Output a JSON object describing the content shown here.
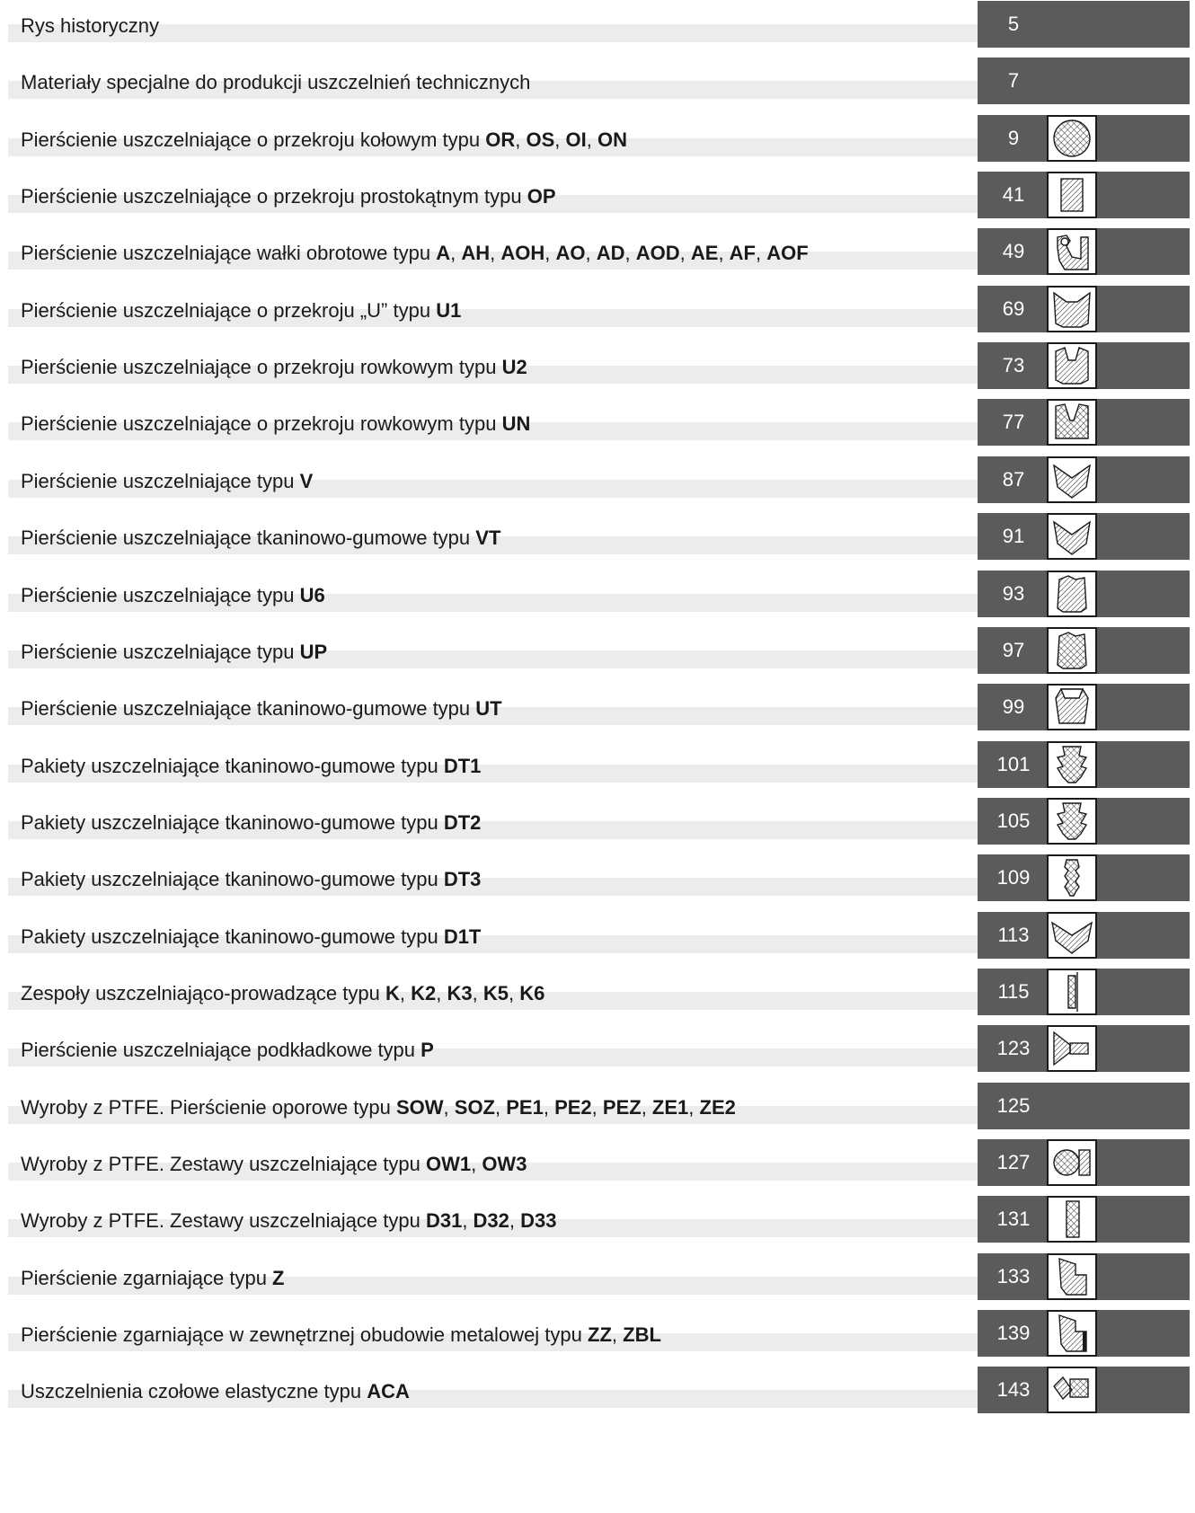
{
  "toc": {
    "entries": [
      {
        "title_parts": [
          {
            "text": "Rys historyczny",
            "bold": false
          }
        ],
        "page": "5",
        "icon": "none"
      },
      {
        "title_parts": [
          {
            "text": "Materiały specjalne do produkcji uszczelnień technicznych",
            "bold": false
          }
        ],
        "page": "7",
        "icon": "none"
      },
      {
        "title_parts": [
          {
            "text": "Pierścienie uszczelniające o przekroju kołowym typu ",
            "bold": false
          },
          {
            "text": "OR",
            "bold": true
          },
          {
            "text": ", ",
            "bold": false
          },
          {
            "text": "OS",
            "bold": true
          },
          {
            "text": ", ",
            "bold": false
          },
          {
            "text": "OI",
            "bold": true
          },
          {
            "text": ", ",
            "bold": false
          },
          {
            "text": "ON",
            "bold": true
          }
        ],
        "page": "9",
        "icon": "circle-section-icon"
      },
      {
        "title_parts": [
          {
            "text": "Pierścienie uszczelniające o przekroju prostokątnym typu ",
            "bold": false
          },
          {
            "text": "OP",
            "bold": true
          }
        ],
        "page": "41",
        "icon": "rectangle-section-icon"
      },
      {
        "title_parts": [
          {
            "text": "Pierścienie uszczelniające wałki obrotowe typu ",
            "bold": false
          },
          {
            "text": "A",
            "bold": true
          },
          {
            "text": ", ",
            "bold": false
          },
          {
            "text": "AH",
            "bold": true
          },
          {
            "text": ", ",
            "bold": false
          },
          {
            "text": "AOH",
            "bold": true
          },
          {
            "text": ", ",
            "bold": false
          },
          {
            "text": "AO",
            "bold": true
          },
          {
            "text": ", ",
            "bold": false
          },
          {
            "text": "AD",
            "bold": true
          },
          {
            "text": ", ",
            "bold": false
          },
          {
            "text": "AOD",
            "bold": true
          },
          {
            "text": ", ",
            "bold": false
          },
          {
            "text": "AE",
            "bold": true
          },
          {
            "text": ", ",
            "bold": false
          },
          {
            "text": "AF",
            "bold": true
          },
          {
            "text": ", ",
            "bold": false
          },
          {
            "text": "AOF",
            "bold": true
          }
        ],
        "page": "49",
        "icon": "shaft-seal-icon"
      },
      {
        "title_parts": [
          {
            "text": "Pierścienie uszczelniające o przekroju „U” typu ",
            "bold": false
          },
          {
            "text": "U1",
            "bold": true
          }
        ],
        "page": "69",
        "icon": "u-section-icon"
      },
      {
        "title_parts": [
          {
            "text": "Pierścienie uszczelniające o przekroju rowkowym typu ",
            "bold": false
          },
          {
            "text": "U2",
            "bold": true
          }
        ],
        "page": "73",
        "icon": "groove-section-icon"
      },
      {
        "title_parts": [
          {
            "text": "Pierścienie uszczelniające o przekroju rowkowym typu ",
            "bold": false
          },
          {
            "text": "UN",
            "bold": true
          }
        ],
        "page": "77",
        "icon": "groove-section-deep-icon"
      },
      {
        "title_parts": [
          {
            "text": "Pierścienie uszczelniające typu ",
            "bold": false
          },
          {
            "text": "V",
            "bold": true
          }
        ],
        "page": "87",
        "icon": "v-section-icon"
      },
      {
        "title_parts": [
          {
            "text": "Pierścienie uszczelniające tkaninowo-gumowe typu ",
            "bold": false
          },
          {
            "text": "VT",
            "bold": true
          }
        ],
        "page": "91",
        "icon": "v-section-icon"
      },
      {
        "title_parts": [
          {
            "text": "Pierścienie uszczelniające typu ",
            "bold": false
          },
          {
            "text": "U6",
            "bold": true
          }
        ],
        "page": "93",
        "icon": "u6-section-icon"
      },
      {
        "title_parts": [
          {
            "text": "Pierścienie uszczelniające typu ",
            "bold": false
          },
          {
            "text": "UP",
            "bold": true
          }
        ],
        "page": "97",
        "icon": "up-section-icon"
      },
      {
        "title_parts": [
          {
            "text": "Pierścienie uszczelniające tkaninowo-gumowe typu ",
            "bold": false
          },
          {
            "text": "UT",
            "bold": true
          }
        ],
        "page": "99",
        "icon": "ut-section-icon"
      },
      {
        "title_parts": [
          {
            "text": "Pakiety uszczelniające tkaninowo-gumowe typu ",
            "bold": false
          },
          {
            "text": "DT1",
            "bold": true
          }
        ],
        "page": "101",
        "icon": "seal-stack-icon"
      },
      {
        "title_parts": [
          {
            "text": "Pakiety uszczelniające tkaninowo-gumowe typu ",
            "bold": false
          },
          {
            "text": "DT2",
            "bold": true
          }
        ],
        "page": "105",
        "icon": "seal-stack-icon"
      },
      {
        "title_parts": [
          {
            "text": "Pakiety uszczelniające tkaninowo-gumowe typu ",
            "bold": false
          },
          {
            "text": "DT3",
            "bold": true
          }
        ],
        "page": "109",
        "icon": "seal-stack-narrow-icon"
      },
      {
        "title_parts": [
          {
            "text": "Pakiety uszczelniające tkaninowo-gumowe typu ",
            "bold": false
          },
          {
            "text": "D1T",
            "bold": true
          }
        ],
        "page": "113",
        "icon": "wide-v-section-icon"
      },
      {
        "title_parts": [
          {
            "text": "Zespoły uszczelniająco-prowadzące typu ",
            "bold": false
          },
          {
            "text": "K",
            "bold": true
          },
          {
            "text": ", ",
            "bold": false
          },
          {
            "text": "K2",
            "bold": true
          },
          {
            "text": ", ",
            "bold": false
          },
          {
            "text": "K3",
            "bold": true
          },
          {
            "text": ", ",
            "bold": false
          },
          {
            "text": "K5",
            "bold": true
          },
          {
            "text": ", ",
            "bold": false
          },
          {
            "text": "K6",
            "bold": true
          }
        ],
        "page": "115",
        "icon": "guide-seal-icon"
      },
      {
        "title_parts": [
          {
            "text": "Pierścienie uszczelniające podkładkowe typu ",
            "bold": false
          },
          {
            "text": "P",
            "bold": true
          }
        ],
        "page": "123",
        "icon": "washer-seal-icon"
      },
      {
        "title_parts": [
          {
            "text": "Wyroby z PTFE. Pierścienie oporowe typu ",
            "bold": false
          },
          {
            "text": "SOW",
            "bold": true
          },
          {
            "text": ", ",
            "bold": false
          },
          {
            "text": "SOZ",
            "bold": true
          },
          {
            "text": ", ",
            "bold": false
          },
          {
            "text": "PE1",
            "bold": true
          },
          {
            "text": ", ",
            "bold": false
          },
          {
            "text": "PE2",
            "bold": true
          },
          {
            "text": ", ",
            "bold": false
          },
          {
            "text": "PEZ",
            "bold": true
          },
          {
            "text": ", ",
            "bold": false
          },
          {
            "text": "ZE1",
            "bold": true
          },
          {
            "text": ", ",
            "bold": false
          },
          {
            "text": "ZE2",
            "bold": true
          }
        ],
        "page": "125",
        "icon": "none"
      },
      {
        "title_parts": [
          {
            "text": "Wyroby z PTFE. Zestawy uszczelniające typu ",
            "bold": false
          },
          {
            "text": "OW1",
            "bold": true
          },
          {
            "text": ", ",
            "bold": false
          },
          {
            "text": "OW3",
            "bold": true
          }
        ],
        "page": "127",
        "icon": "oring-with-ring-icon"
      },
      {
        "title_parts": [
          {
            "text": "Wyroby z PTFE. Zestawy uszczelniające typu ",
            "bold": false
          },
          {
            "text": "D31",
            "bold": true
          },
          {
            "text": ", ",
            "bold": false
          },
          {
            "text": "D32",
            "bold": true
          },
          {
            "text": ", ",
            "bold": false
          },
          {
            "text": "D33",
            "bold": true
          }
        ],
        "page": "131",
        "icon": "ptfe-set-icon"
      },
      {
        "title_parts": [
          {
            "text": "Pierścienie zgarniające typu ",
            "bold": false
          },
          {
            "text": "Z",
            "bold": true
          }
        ],
        "page": "133",
        "icon": "wiper-icon"
      },
      {
        "title_parts": [
          {
            "text": "Pierścienie zgarniające w zewnętrznej obudowie metalowej typu ",
            "bold": false
          },
          {
            "text": "ZZ",
            "bold": true
          },
          {
            "text": ", ",
            "bold": false
          },
          {
            "text": "ZBL",
            "bold": true
          }
        ],
        "page": "139",
        "icon": "wiper-metal-icon"
      },
      {
        "title_parts": [
          {
            "text": "Uszczelnienia czołowe elastyczne typu ",
            "bold": false
          },
          {
            "text": "ACA",
            "bold": true
          }
        ],
        "page": "143",
        "icon": "face-seal-icon"
      }
    ]
  },
  "colors": {
    "page_box": "#5b5b5b",
    "stripe": "#ececec",
    "text": "#1a1a1a",
    "page_number": "#ffffff"
  }
}
